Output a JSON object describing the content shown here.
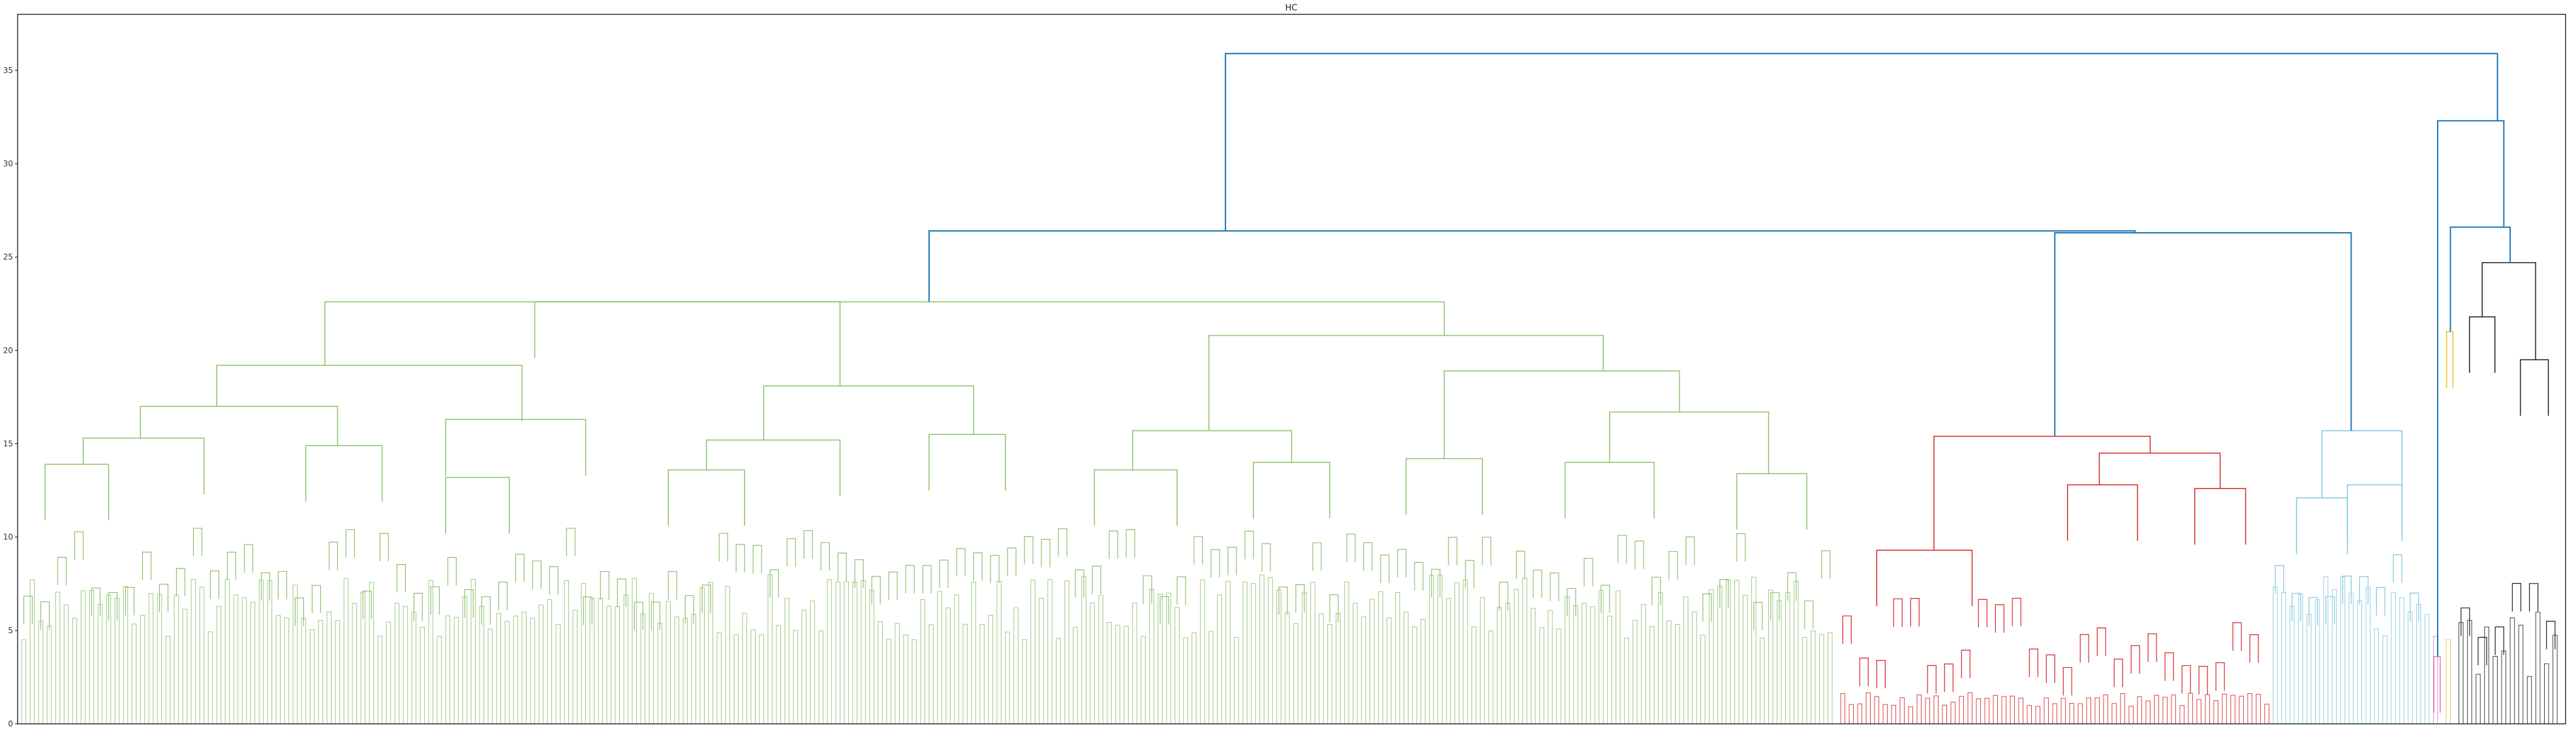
{
  "chart_data": {
    "type": "dendrogram",
    "title": "HC",
    "xlabel": "",
    "ylabel": "",
    "ylim": [
      0,
      38
    ],
    "y_ticks": [
      0,
      5,
      10,
      15,
      20,
      25,
      30,
      35
    ],
    "y_tick_labels": [
      "0",
      "5",
      "10",
      "15",
      "20",
      "25",
      "30",
      "35"
    ],
    "grid": false,
    "legend": "none",
    "leaf_count_approx": 600,
    "link_color_above_threshold": "#1f77b4",
    "clusters": [
      {
        "color": "#8dc26f",
        "leaf_range": [
          0.0,
          0.715
        ]
      },
      {
        "color": "#d62728",
        "leaf_range": [
          0.715,
          0.885
        ]
      },
      {
        "color": "#7ec8dc",
        "leaf_range": [
          0.885,
          0.948
        ]
      },
      {
        "color": "#e377c2",
        "leaf_range": [
          0.948,
          0.953
        ]
      },
      {
        "color": "#e6c229",
        "leaf_range": [
          0.953,
          0.958
        ]
      },
      {
        "color": "#222222",
        "leaf_range": [
          0.958,
          1.0
        ]
      }
    ],
    "merges": [
      {
        "cluster": 0,
        "left": [
          0.0,
          0.02
        ],
        "right": [
          0.02,
          0.05
        ],
        "height": 13.9
      },
      {
        "cluster": 0,
        "left": [
          0.0,
          0.05
        ],
        "right": [
          0.05,
          0.095
        ],
        "height": 15.3
      },
      {
        "cluster": 0,
        "left": [
          0.095,
          0.13
        ],
        "right": [
          0.13,
          0.155
        ],
        "height": 14.9
      },
      {
        "cluster": 0,
        "left": [
          0.0,
          0.095
        ],
        "right": [
          0.095,
          0.155
        ],
        "height": 17.0
      },
      {
        "cluster": 0,
        "left": [
          0.155,
          0.18
        ],
        "right": [
          0.18,
          0.205
        ],
        "height": 13.2
      },
      {
        "cluster": 0,
        "left": [
          0.13,
          0.205
        ],
        "right": [
          0.205,
          0.24
        ],
        "height": 16.3
      },
      {
        "cluster": 0,
        "left": [
          0.0,
          0.155
        ],
        "right": [
          0.155,
          0.24
        ],
        "height": 19.2
      },
      {
        "cluster": 0,
        "left": [
          0.24,
          0.27
        ],
        "right": [
          0.27,
          0.3
        ],
        "height": 13.6
      },
      {
        "cluster": 0,
        "left": [
          0.24,
          0.3
        ],
        "right": [
          0.3,
          0.345
        ],
        "height": 15.2
      },
      {
        "cluster": 0,
        "left": [
          0.345,
          0.37
        ],
        "right": [
          0.37,
          0.405
        ],
        "height": 15.5
      },
      {
        "cluster": 0,
        "left": [
          0.24,
          0.345
        ],
        "right": [
          0.345,
          0.405
        ],
        "height": 18.1
      },
      {
        "cluster": 0,
        "left": [
          0.0,
          0.24
        ],
        "right": [
          0.24,
          0.405
        ],
        "height": 22.6
      },
      {
        "cluster": 0,
        "left": [
          0.405,
          0.44
        ],
        "right": [
          0.44,
          0.47
        ],
        "height": 13.6
      },
      {
        "cluster": 0,
        "left": [
          0.47,
          0.5
        ],
        "right": [
          0.5,
          0.53
        ],
        "height": 14.0
      },
      {
        "cluster": 0,
        "left": [
          0.405,
          0.47
        ],
        "right": [
          0.47,
          0.53
        ],
        "height": 15.7
      },
      {
        "cluster": 0,
        "left": [
          0.53,
          0.56
        ],
        "right": [
          0.56,
          0.59
        ],
        "height": 14.2
      },
      {
        "cluster": 0,
        "left": [
          0.59,
          0.625
        ],
        "right": [
          0.625,
          0.66
        ],
        "height": 14.0
      },
      {
        "cluster": 0,
        "left": [
          0.66,
          0.69
        ],
        "right": [
          0.69,
          0.715
        ],
        "height": 13.4
      },
      {
        "cluster": 0,
        "left": [
          0.59,
          0.66
        ],
        "right": [
          0.66,
          0.715
        ],
        "height": 16.7
      },
      {
        "cluster": 0,
        "left": [
          0.53,
          0.59
        ],
        "right": [
          0.59,
          0.715
        ],
        "height": 18.9
      },
      {
        "cluster": 0,
        "left": [
          0.405,
          0.53
        ],
        "right": [
          0.53,
          0.715
        ],
        "height": 20.8
      },
      {
        "cluster": 0,
        "left": [
          0.0,
          0.405
        ],
        "right": [
          0.405,
          0.715
        ],
        "height": 22.6
      },
      {
        "cluster": 1,
        "left": [
          0.715,
          0.745
        ],
        "right": [
          0.745,
          0.79
        ],
        "height": 9.3
      },
      {
        "cluster": 1,
        "left": [
          0.79,
          0.82
        ],
        "right": [
          0.82,
          0.845
        ],
        "height": 12.8
      },
      {
        "cluster": 1,
        "left": [
          0.845,
          0.865
        ],
        "right": [
          0.865,
          0.885
        ],
        "height": 12.6
      },
      {
        "cluster": 1,
        "left": [
          0.79,
          0.845
        ],
        "right": [
          0.845,
          0.885
        ],
        "height": 14.5
      },
      {
        "cluster": 1,
        "left": [
          0.715,
          0.79
        ],
        "right": [
          0.79,
          0.885
        ],
        "height": 15.4
      },
      {
        "cluster": 2,
        "left": [
          0.885,
          0.905
        ],
        "right": [
          0.905,
          0.925
        ],
        "height": 12.1
      },
      {
        "cluster": 2,
        "left": [
          0.905,
          0.925
        ],
        "right": [
          0.925,
          0.948
        ],
        "height": 12.8
      },
      {
        "cluster": 2,
        "left": [
          0.885,
          0.925
        ],
        "right": [
          0.925,
          0.948
        ],
        "height": 15.7
      },
      {
        "cluster": 3,
        "left": [
          0.948,
          0.95
        ],
        "right": [
          0.95,
          0.953
        ],
        "height": 3.6
      },
      {
        "cluster": 4,
        "left": [
          0.953,
          0.955
        ],
        "right": [
          0.955,
          0.958
        ],
        "height": 21.0
      },
      {
        "cluster": 5,
        "left": [
          0.958,
          0.968
        ],
        "right": [
          0.968,
          0.978
        ],
        "height": 21.8
      },
      {
        "cluster": 5,
        "left": [
          0.978,
          0.988
        ],
        "right": [
          0.988,
          1.0
        ],
        "height": 19.5
      },
      {
        "cluster": 5,
        "left": [
          0.958,
          0.978
        ],
        "right": [
          0.978,
          1.0
        ],
        "height": 24.7
      },
      {
        "cluster": -1,
        "left": [
          0.715,
          0.885
        ],
        "right": [
          0.885,
          0.948
        ],
        "height": 26.3
      },
      {
        "cluster": -1,
        "left": [
          0.0,
          0.715
        ],
        "right": [
          0.715,
          0.948
        ],
        "height": 26.4
      },
      {
        "cluster": -1,
        "left": [
          0.953,
          0.958
        ],
        "right": [
          0.958,
          1.0
        ],
        "height": 26.6
      },
      {
        "cluster": -1,
        "left": [
          0.948,
          0.953
        ],
        "right": [
          0.953,
          1.0
        ],
        "height": 32.3
      },
      {
        "cluster": -1,
        "left": [
          0.0,
          0.948
        ],
        "right": [
          0.948,
          1.0
        ],
        "height": 35.9
      }
    ]
  }
}
